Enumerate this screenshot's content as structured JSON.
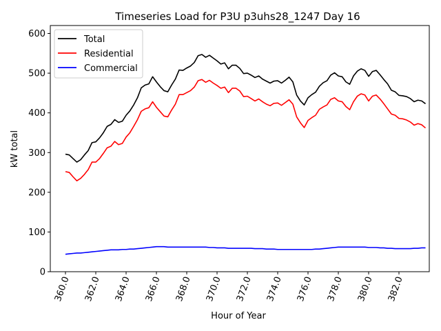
{
  "chart_data": {
    "type": "line",
    "title": "Timeseries Load for P3U p3uhs28_1247  Day 16",
    "xlabel": "Hour of Year",
    "ylabel": "kW total",
    "xlim": [
      359.0,
      384.0
    ],
    "ylim": [
      0,
      620
    ],
    "xticks": [
      360.0,
      362.0,
      364.0,
      366.0,
      368.0,
      370.0,
      372.0,
      374.0,
      376.0,
      378.0,
      380.0,
      382.0
    ],
    "xtick_labels": [
      "360.0",
      "362.0",
      "364.0",
      "366.0",
      "368.0",
      "370.0",
      "372.0",
      "374.0",
      "376.0",
      "378.0",
      "380.0",
      "382.0"
    ],
    "yticks": [
      0,
      100,
      200,
      300,
      400,
      500,
      600
    ],
    "ytick_labels": [
      "0",
      "100",
      "200",
      "300",
      "400",
      "500",
      "600"
    ],
    "legend_position": "top-left",
    "grid": false,
    "x": [
      360.0,
      360.25,
      360.5,
      360.75,
      361.0,
      361.25,
      361.5,
      361.75,
      362.0,
      362.25,
      362.5,
      362.75,
      363.0,
      363.25,
      363.5,
      363.75,
      364.0,
      364.25,
      364.5,
      364.75,
      365.0,
      365.25,
      365.5,
      365.75,
      366.0,
      366.25,
      366.5,
      366.75,
      367.0,
      367.25,
      367.5,
      367.75,
      368.0,
      368.25,
      368.5,
      368.75,
      369.0,
      369.25,
      369.5,
      369.75,
      370.0,
      370.25,
      370.5,
      370.75,
      371.0,
      371.25,
      371.5,
      371.75,
      372.0,
      372.25,
      372.5,
      372.75,
      373.0,
      373.25,
      373.5,
      373.75,
      374.0,
      374.25,
      374.5,
      374.75,
      375.0,
      375.25,
      375.5,
      375.75,
      376.0,
      376.25,
      376.5,
      376.75,
      377.0,
      377.25,
      377.5,
      377.75,
      378.0,
      378.25,
      378.5,
      378.75,
      379.0,
      379.25,
      379.5,
      379.75,
      380.0,
      380.25,
      380.5,
      380.75,
      381.0,
      381.25,
      381.5,
      381.75,
      382.0,
      382.25,
      382.5,
      382.75,
      383.0,
      383.25,
      383.5,
      383.75
    ],
    "series": [
      {
        "name": "Total",
        "color": "#000000",
        "values": [
          296,
          294,
          285,
          276,
          282,
          294,
          305,
          325,
          327,
          337,
          350,
          366,
          371,
          383,
          376,
          379,
          394,
          405,
          420,
          438,
          463,
          470,
          473,
          491,
          478,
          466,
          456,
          453,
          470,
          485,
          508,
          507,
          513,
          518,
          527,
          544,
          547,
          540,
          545,
          538,
          531,
          523,
          526,
          511,
          520,
          520,
          512,
          499,
          500,
          495,
          489,
          493,
          485,
          480,
          475,
          480,
          481,
          475,
          482,
          490,
          478,
          445,
          430,
          420,
          438,
          446,
          452,
          467,
          476,
          481,
          495,
          501,
          493,
          491,
          478,
          472,
          493,
          505,
          511,
          507,
          492,
          504,
          507,
          496,
          484,
          473,
          457,
          453,
          444,
          443,
          441,
          436,
          428,
          432,
          430,
          423
        ]
      },
      {
        "name": "Residential",
        "color": "#ff0000",
        "values": [
          252,
          250,
          239,
          229,
          235,
          245,
          257,
          276,
          276,
          285,
          298,
          312,
          316,
          328,
          320,
          323,
          339,
          350,
          366,
          383,
          404,
          410,
          413,
          428,
          414,
          403,
          392,
          390,
          407,
          422,
          446,
          446,
          451,
          456,
          465,
          481,
          484,
          477,
          482,
          475,
          469,
          462,
          465,
          451,
          462,
          462,
          455,
          441,
          442,
          436,
          430,
          435,
          428,
          422,
          418,
          424,
          425,
          419,
          426,
          433,
          422,
          390,
          375,
          363,
          381,
          388,
          394,
          409,
          415,
          420,
          434,
          438,
          430,
          428,
          416,
          408,
          428,
          442,
          448,
          445,
          430,
          442,
          445,
          435,
          423,
          410,
          397,
          394,
          386,
          385,
          382,
          377,
          369,
          373,
          370,
          362
        ]
      },
      {
        "name": "Commercial",
        "color": "#0000ff",
        "values": [
          44,
          45,
          46,
          47,
          47,
          48,
          49,
          50,
          51,
          52,
          53,
          54,
          55,
          55,
          55,
          56,
          56,
          57,
          57,
          58,
          59,
          60,
          61,
          62,
          63,
          63,
          63,
          62,
          62,
          62,
          62,
          62,
          62,
          62,
          62,
          62,
          62,
          62,
          61,
          61,
          60,
          60,
          60,
          59,
          59,
          59,
          59,
          59,
          59,
          59,
          58,
          58,
          58,
          57,
          57,
          57,
          56,
          56,
          56,
          56,
          56,
          56,
          56,
          56,
          56,
          56,
          57,
          57,
          58,
          59,
          60,
          61,
          62,
          62,
          62,
          62,
          62,
          62,
          62,
          62,
          61,
          61,
          61,
          60,
          60,
          59,
          59,
          58,
          58,
          58,
          58,
          58,
          59,
          59,
          60,
          60
        ]
      }
    ]
  }
}
